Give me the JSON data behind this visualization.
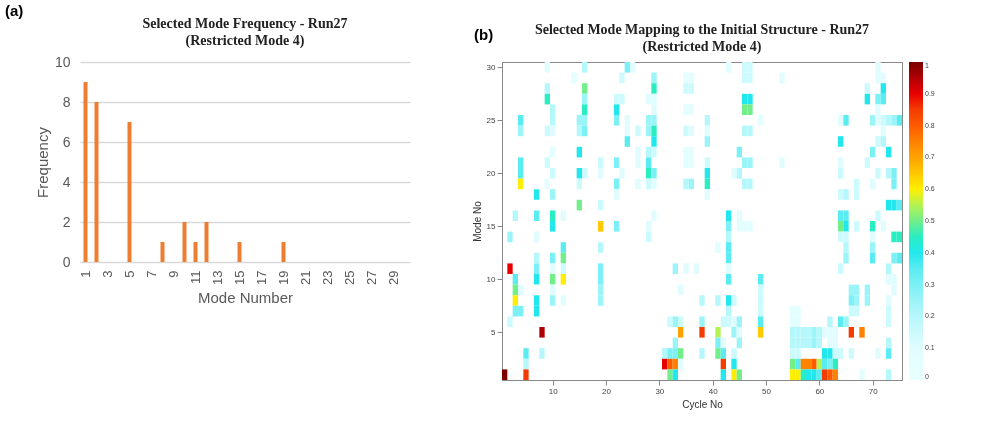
{
  "chart_data": [
    {
      "type": "bar",
      "title": "Selected Mode Frequency - Run27\n(Restricted Mode 4)",
      "xlabel": "Mode Number",
      "ylabel": "Frequency",
      "categories": [
        "1",
        null,
        "3",
        null,
        "5",
        null,
        "7",
        null,
        "9",
        null,
        "11",
        null,
        "13",
        null,
        "15",
        null,
        "17",
        null,
        "19",
        null,
        "21",
        null,
        "23",
        null,
        "25",
        null,
        "27",
        null,
        "29",
        null
      ],
      "values": [
        9,
        8,
        0,
        0,
        7,
        0,
        0,
        1,
        0,
        2,
        1,
        2,
        0,
        0,
        1,
        0,
        0,
        0,
        1,
        0,
        0,
        0,
        0,
        0,
        0,
        0,
        0,
        0,
        0,
        0
      ],
      "color": "#ed7d31",
      "ylim": [
        0,
        10
      ],
      "yticks": [
        0,
        2,
        4,
        6,
        8,
        10
      ],
      "grid": "y",
      "annotations": [
        "(a)"
      ]
    },
    {
      "type": "heatmap",
      "title": "Selected Mode Mapping to the Initial Structure - Run27\n(Restricted Mode 4)",
      "xlabel": "Cycle No",
      "ylabel": "Mode No",
      "xlim": [
        0.5,
        75.5
      ],
      "xticks": [
        10,
        20,
        30,
        40,
        50,
        60,
        70
      ],
      "ylim": [
        0.5,
        30.5
      ],
      "yticks": [
        5,
        10,
        15,
        20,
        25,
        30
      ],
      "clim": [
        0,
        1
      ],
      "cticks": [
        0,
        0.1,
        0.2,
        0.3,
        0.4,
        0.5,
        0.6,
        0.7,
        0.8,
        0.9,
        1
      ],
      "annotations": [
        "(b)"
      ],
      "cells": [
        [
          null,
          null,
          null,
          null,
          null,
          null,
          null,
          null,
          0.1,
          null,
          null,
          null,
          null,
          null,
          null,
          0.2,
          null,
          null,
          null,
          null,
          null,
          null,
          null,
          0.3,
          0.1,
          null,
          null,
          null,
          null,
          null,
          null,
          null,
          null,
          null,
          null,
          null,
          null,
          null,
          null,
          null,
          null,
          null,
          0.08,
          null,
          null,
          0.15,
          0.15,
          null,
          null,
          null,
          null,
          null,
          null,
          null,
          null,
          null,
          null,
          null,
          null,
          null,
          null,
          null,
          null,
          null,
          null,
          null,
          null,
          null,
          null,
          null,
          0.1,
          null,
          null,
          null,
          null
        ],
        [
          null,
          null,
          null,
          null,
          null,
          null,
          null,
          null,
          null,
          null,
          null,
          null,
          null,
          0.08,
          null,
          null,
          null,
          null,
          null,
          null,
          null,
          null,
          0.15,
          null,
          null,
          null,
          null,
          null,
          0.25,
          null,
          null,
          null,
          null,
          null,
          0.08,
          0.08,
          null,
          null,
          null,
          null,
          null,
          null,
          null,
          null,
          null,
          0.15,
          0.15,
          null,
          null,
          null,
          null,
          null,
          0.1,
          null,
          null,
          null,
          null,
          null,
          null,
          null,
          null,
          null,
          null,
          null,
          null,
          null,
          null,
          null,
          null,
          null,
          0.1,
          0.1,
          null,
          null,
          null
        ],
        [
          null,
          null,
          null,
          null,
          null,
          null,
          null,
          null,
          0.2,
          null,
          null,
          null,
          null,
          null,
          null,
          0.5,
          null,
          null,
          null,
          null,
          null,
          null,
          null,
          null,
          null,
          null,
          null,
          null,
          0.45,
          null,
          null,
          null,
          null,
          null,
          0.15,
          0.15,
          null,
          null,
          null,
          null,
          null,
          null,
          null,
          null,
          null,
          null,
          null,
          null,
          null,
          null,
          null,
          null,
          null,
          null,
          null,
          null,
          null,
          null,
          null,
          null,
          null,
          null,
          null,
          null,
          null,
          null,
          null,
          null,
          0.15,
          null,
          null,
          0.4,
          null,
          null,
          null
        ],
        [
          null,
          null,
          null,
          null,
          null,
          null,
          null,
          null,
          0.45,
          null,
          null,
          null,
          null,
          null,
          null,
          0.25,
          null,
          null,
          null,
          null,
          null,
          0.15,
          0.15,
          null,
          null,
          null,
          null,
          0.1,
          0.1,
          null,
          null,
          null,
          null,
          null,
          null,
          null,
          null,
          null,
          null,
          null,
          null,
          null,
          null,
          null,
          null,
          0.4,
          0.4,
          null,
          null,
          null,
          null,
          null,
          null,
          null,
          null,
          null,
          null,
          null,
          null,
          null,
          null,
          null,
          null,
          null,
          null,
          null,
          null,
          null,
          0.4,
          null,
          0.3,
          0.35,
          null,
          null,
          null
        ],
        [
          null,
          null,
          null,
          null,
          null,
          null,
          null,
          null,
          null,
          0.2,
          null,
          null,
          null,
          null,
          null,
          0.45,
          null,
          null,
          null,
          null,
          null,
          0.4,
          null,
          null,
          null,
          null,
          null,
          null,
          0.1,
          null,
          null,
          null,
          null,
          null,
          0.08,
          0.08,
          null,
          null,
          null,
          null,
          null,
          null,
          null,
          null,
          null,
          0.5,
          0.5,
          null,
          null,
          null,
          null,
          null,
          null,
          null,
          null,
          null,
          null,
          null,
          null,
          null,
          null,
          null,
          null,
          null,
          null,
          null,
          null,
          null,
          null,
          null,
          0.1,
          null,
          null,
          null,
          null
        ],
        [
          null,
          null,
          null,
          0.35,
          null,
          null,
          null,
          null,
          null,
          0.2,
          null,
          null,
          null,
          null,
          0.25,
          0.25,
          null,
          null,
          null,
          null,
          null,
          0.3,
          null,
          0.1,
          null,
          null,
          null,
          0.25,
          0.25,
          null,
          null,
          null,
          null,
          null,
          null,
          null,
          null,
          null,
          0.2,
          null,
          null,
          null,
          null,
          null,
          null,
          null,
          null,
          null,
          0.08,
          null,
          null,
          null,
          null,
          null,
          null,
          null,
          null,
          null,
          null,
          null,
          null,
          null,
          null,
          0.1,
          0.35,
          null,
          null,
          null,
          null,
          0.25,
          0.1,
          0.15,
          0.2,
          0.25,
          0.35
        ],
        [
          null,
          null,
          null,
          0.25,
          null,
          null,
          null,
          null,
          0.15,
          0.1,
          null,
          null,
          null,
          null,
          0.2,
          0.3,
          null,
          null,
          null,
          null,
          null,
          null,
          null,
          0.1,
          null,
          0.15,
          null,
          0.25,
          0.45,
          null,
          null,
          null,
          null,
          null,
          0.15,
          0.1,
          null,
          null,
          0.1,
          null,
          null,
          null,
          null,
          null,
          null,
          0.2,
          0.2,
          null,
          null,
          null,
          null,
          null,
          null,
          null,
          null,
          null,
          null,
          null,
          null,
          null,
          null,
          null,
          null,
          null,
          null,
          null,
          null,
          null,
          null,
          null,
          null,
          0.1,
          null,
          null,
          null
        ],
        [
          null,
          null,
          null,
          null,
          null,
          null,
          null,
          null,
          null,
          null,
          null,
          null,
          null,
          null,
          null,
          null,
          null,
          null,
          null,
          null,
          null,
          null,
          null,
          0.35,
          null,
          null,
          null,
          null,
          0.4,
          null,
          null,
          null,
          null,
          null,
          null,
          null,
          null,
          null,
          0.25,
          null,
          null,
          null,
          null,
          null,
          null,
          null,
          null,
          null,
          null,
          null,
          null,
          null,
          null,
          null,
          null,
          null,
          null,
          null,
          null,
          null,
          null,
          null,
          null,
          0.4,
          null,
          null,
          null,
          null,
          null,
          null,
          0.15,
          0.2,
          null,
          null,
          null
        ],
        [
          null,
          null,
          null,
          null,
          null,
          null,
          null,
          null,
          null,
          0.08,
          null,
          null,
          null,
          null,
          0.4,
          null,
          null,
          null,
          null,
          null,
          null,
          null,
          null,
          null,
          null,
          0.1,
          null,
          0.2,
          0.15,
          null,
          null,
          null,
          null,
          null,
          0.08,
          0.08,
          null,
          null,
          null,
          null,
          null,
          null,
          null,
          null,
          0.3,
          null,
          null,
          null,
          null,
          null,
          null,
          null,
          null,
          null,
          null,
          null,
          null,
          null,
          null,
          null,
          null,
          null,
          null,
          null,
          null,
          null,
          null,
          null,
          null,
          0.3,
          null,
          null,
          0.4,
          null,
          null
        ],
        [
          null,
          null,
          null,
          0.35,
          null,
          null,
          null,
          null,
          0.15,
          null,
          null,
          null,
          null,
          null,
          null,
          null,
          null,
          null,
          0.15,
          null,
          null,
          0.3,
          null,
          null,
          null,
          0.1,
          null,
          0.35,
          null,
          null,
          null,
          null,
          null,
          null,
          0.08,
          0.08,
          null,
          null,
          0.15,
          null,
          null,
          null,
          null,
          null,
          null,
          0.25,
          0.25,
          null,
          null,
          null,
          null,
          null,
          0.1,
          null,
          null,
          null,
          null,
          null,
          null,
          null,
          null,
          null,
          null,
          0.1,
          null,
          null,
          null,
          null,
          0.15,
          null,
          null,
          null,
          null,
          null,
          null
        ],
        [
          null,
          null,
          null,
          0.35,
          null,
          null,
          null,
          null,
          null,
          0.15,
          null,
          null,
          null,
          null,
          0.4,
          0.15,
          null,
          null,
          0.1,
          null,
          null,
          null,
          0.1,
          null,
          null,
          null,
          null,
          0.45,
          0.3,
          null,
          null,
          null,
          null,
          null,
          null,
          null,
          null,
          null,
          0.4,
          null,
          null,
          null,
          null,
          0.1,
          0.2,
          null,
          null,
          null,
          null,
          null,
          null,
          null,
          null,
          null,
          null,
          null,
          null,
          null,
          null,
          null,
          null,
          null,
          null,
          0.15,
          null,
          null,
          null,
          null,
          null,
          null,
          0.15,
          null,
          0.2,
          0.3,
          null
        ],
        [
          null,
          null,
          null,
          0.6,
          null,
          null,
          null,
          null,
          0.08,
          null,
          null,
          null,
          null,
          null,
          0.15,
          null,
          null,
          null,
          null,
          null,
          null,
          0.3,
          null,
          null,
          null,
          0.1,
          null,
          0.15,
          0.1,
          null,
          null,
          null,
          null,
          null,
          0.2,
          0.25,
          null,
          null,
          0.45,
          null,
          null,
          null,
          null,
          null,
          null,
          0.2,
          0.2,
          null,
          null,
          null,
          null,
          null,
          null,
          null,
          null,
          null,
          null,
          null,
          null,
          null,
          null,
          null,
          null,
          null,
          null,
          null,
          0.15,
          null,
          null,
          0.1,
          null,
          null,
          null,
          0.3,
          null
        ],
        [
          null,
          null,
          null,
          null,
          null,
          null,
          0.4,
          null,
          null,
          0.25,
          null,
          null,
          null,
          null,
          null,
          null,
          null,
          null,
          null,
          null,
          null,
          0.1,
          null,
          null,
          null,
          null,
          null,
          null,
          null,
          null,
          null,
          null,
          null,
          null,
          null,
          null,
          null,
          null,
          0.1,
          null,
          null,
          null,
          null,
          null,
          null,
          null,
          null,
          null,
          null,
          null,
          null,
          null,
          null,
          null,
          null,
          null,
          null,
          null,
          null,
          null,
          null,
          null,
          null,
          0.15,
          0.2,
          null,
          0.15,
          null,
          null,
          null,
          null,
          null,
          null,
          null,
          null
        ],
        [
          null,
          null,
          null,
          null,
          null,
          null,
          null,
          null,
          null,
          null,
          null,
          null,
          null,
          null,
          0.5,
          null,
          null,
          null,
          0.15,
          null,
          null,
          null,
          null,
          null,
          null,
          null,
          null,
          null,
          null,
          null,
          null,
          null,
          null,
          null,
          null,
          null,
          null,
          null,
          null,
          null,
          null,
          null,
          null,
          null,
          null,
          null,
          null,
          null,
          null,
          null,
          null,
          null,
          null,
          null,
          null,
          null,
          null,
          null,
          null,
          null,
          null,
          null,
          null,
          null,
          null,
          null,
          null,
          null,
          null,
          null,
          null,
          null,
          0.4,
          0.4,
          0.35
        ],
        [
          null,
          null,
          0.2,
          null,
          null,
          null,
          0.35,
          null,
          null,
          0.45,
          null,
          0.1,
          null,
          null,
          null,
          null,
          null,
          null,
          null,
          null,
          null,
          null,
          null,
          null,
          null,
          null,
          null,
          null,
          0.1,
          null,
          null,
          null,
          null,
          null,
          null,
          null,
          null,
          null,
          null,
          null,
          null,
          null,
          0.4,
          null,
          0.1,
          null,
          null,
          null,
          null,
          null,
          null,
          null,
          null,
          null,
          null,
          null,
          null,
          null,
          null,
          null,
          null,
          null,
          null,
          0.35,
          0.35,
          null,
          null,
          null,
          null,
          null,
          0.15,
          null,
          null,
          null,
          null
        ],
        [
          null,
          null,
          null,
          null,
          null,
          null,
          null,
          null,
          null,
          0.4,
          null,
          null,
          null,
          null,
          null,
          null,
          null,
          null,
          0.65,
          null,
          null,
          0.3,
          null,
          null,
          null,
          null,
          null,
          0.1,
          null,
          null,
          null,
          null,
          null,
          null,
          null,
          null,
          null,
          null,
          null,
          null,
          null,
          null,
          0.3,
          null,
          0.08,
          0.08,
          0.08,
          null,
          null,
          null,
          null,
          null,
          null,
          null,
          null,
          null,
          null,
          null,
          null,
          null,
          null,
          null,
          null,
          0.5,
          0.4,
          null,
          0.15,
          null,
          null,
          0.45,
          null,
          0.1,
          null,
          null,
          null
        ],
        [
          null,
          0.25,
          null,
          null,
          null,
          null,
          0.1,
          null,
          null,
          null,
          null,
          null,
          null,
          null,
          null,
          null,
          null,
          null,
          null,
          null,
          null,
          null,
          null,
          null,
          null,
          null,
          null,
          0.15,
          null,
          null,
          null,
          null,
          null,
          null,
          null,
          null,
          null,
          null,
          null,
          null,
          null,
          null,
          0.2,
          null,
          null,
          null,
          null,
          null,
          null,
          null,
          null,
          null,
          null,
          null,
          null,
          null,
          null,
          null,
          null,
          null,
          null,
          null,
          null,
          0.15,
          0.15,
          null,
          null,
          null,
          null,
          0.1,
          null,
          null,
          null,
          0.45,
          0.45
        ],
        [
          null,
          null,
          null,
          null,
          null,
          null,
          null,
          null,
          null,
          null,
          null,
          0.35,
          null,
          null,
          null,
          null,
          null,
          null,
          0.2,
          null,
          null,
          null,
          null,
          null,
          null,
          null,
          null,
          null,
          null,
          null,
          null,
          null,
          null,
          null,
          null,
          null,
          null,
          null,
          null,
          null,
          0.08,
          null,
          0.35,
          null,
          null,
          null,
          null,
          null,
          null,
          null,
          null,
          null,
          null,
          null,
          null,
          null,
          null,
          null,
          null,
          null,
          null,
          null,
          null,
          null,
          0.2,
          null,
          null,
          null,
          null,
          0.25,
          null,
          null,
          null,
          null,
          null
        ],
        [
          null,
          null,
          null,
          null,
          null,
          null,
          0.2,
          null,
          null,
          0.3,
          null,
          0.5,
          null,
          null,
          null,
          null,
          null,
          null,
          null,
          null,
          null,
          null,
          null,
          null,
          null,
          null,
          null,
          null,
          null,
          null,
          null,
          null,
          null,
          null,
          null,
          null,
          null,
          null,
          null,
          null,
          null,
          null,
          0.35,
          null,
          null,
          null,
          null,
          null,
          null,
          null,
          null,
          null,
          null,
          null,
          null,
          null,
          null,
          null,
          null,
          null,
          null,
          null,
          null,
          null,
          0.25,
          null,
          null,
          null,
          null,
          0.35,
          null,
          null,
          null,
          0.3,
          0.35
        ],
        [
          null,
          0.9,
          null,
          null,
          null,
          null,
          0.3,
          null,
          null,
          0.1,
          null,
          0.15,
          null,
          null,
          null,
          null,
          null,
          null,
          0.3,
          null,
          null,
          null,
          null,
          null,
          null,
          null,
          null,
          null,
          null,
          null,
          null,
          null,
          0.25,
          null,
          0.1,
          null,
          0.1,
          null,
          null,
          null,
          null,
          null,
          0.1,
          null,
          null,
          null,
          null,
          null,
          null,
          null,
          null,
          null,
          null,
          null,
          null,
          null,
          null,
          null,
          null,
          null,
          null,
          null,
          null,
          0.15,
          null,
          null,
          null,
          null,
          null,
          null,
          null,
          null,
          0.2,
          null,
          null
        ],
        [
          null,
          null,
          0.35,
          null,
          null,
          null,
          0.4,
          null,
          null,
          0.5,
          null,
          0.6,
          null,
          null,
          null,
          null,
          null,
          null,
          0.3,
          null,
          null,
          null,
          null,
          null,
          null,
          null,
          null,
          null,
          null,
          null,
          null,
          null,
          null,
          null,
          null,
          null,
          null,
          null,
          null,
          null,
          null,
          null,
          0.35,
          null,
          null,
          null,
          null,
          null,
          0.35,
          null,
          null,
          null,
          null,
          null,
          null,
          null,
          null,
          null,
          null,
          null,
          null,
          null,
          null,
          null,
          null,
          null,
          null,
          null,
          null,
          null,
          null,
          null,
          0.1,
          0.1,
          null
        ],
        [
          null,
          null,
          0.5,
          0.1,
          null,
          null,
          null,
          null,
          null,
          0.1,
          null,
          null,
          null,
          null,
          null,
          null,
          null,
          null,
          0.25,
          null,
          null,
          null,
          null,
          null,
          null,
          null,
          null,
          null,
          null,
          null,
          null,
          null,
          null,
          0.1,
          null,
          null,
          null,
          null,
          null,
          null,
          null,
          null,
          null,
          null,
          null,
          null,
          null,
          null,
          0.15,
          null,
          null,
          null,
          null,
          null,
          null,
          null,
          null,
          null,
          null,
          null,
          null,
          null,
          null,
          null,
          null,
          0.25,
          0.25,
          null,
          0.25,
          null,
          null,
          null,
          null,
          0.1,
          null
        ],
        [
          null,
          null,
          0.6,
          null,
          null,
          null,
          0.4,
          null,
          null,
          0.25,
          null,
          0.08,
          null,
          null,
          null,
          null,
          null,
          null,
          0.25,
          null,
          null,
          null,
          null,
          null,
          null,
          null,
          null,
          null,
          null,
          null,
          null,
          null,
          null,
          null,
          null,
          null,
          null,
          0.2,
          null,
          null,
          0.2,
          null,
          0.4,
          0.15,
          null,
          null,
          null,
          null,
          0.15,
          null,
          null,
          null,
          null,
          null,
          null,
          null,
          null,
          null,
          null,
          null,
          null,
          null,
          null,
          null,
          null,
          0.3,
          0.25,
          null,
          0.25,
          null,
          null,
          null,
          0.1,
          null,
          null
        ],
        [
          null,
          null,
          0.3,
          0.3,
          null,
          null,
          0.4,
          null,
          null,
          null,
          null,
          null,
          null,
          null,
          null,
          null,
          null,
          null,
          null,
          null,
          null,
          null,
          null,
          null,
          null,
          null,
          null,
          null,
          null,
          null,
          null,
          null,
          null,
          null,
          null,
          null,
          null,
          null,
          null,
          null,
          null,
          null,
          0.2,
          null,
          null,
          null,
          null,
          null,
          0.15,
          null,
          null,
          null,
          null,
          null,
          0.08,
          0.08,
          null,
          null,
          null,
          null,
          null,
          null,
          null,
          null,
          null,
          0.15,
          0.15,
          null,
          null,
          null,
          null,
          null,
          0.15,
          null,
          null
        ],
        [
          null,
          0.15,
          null,
          null,
          null,
          null,
          null,
          null,
          null,
          null,
          null,
          null,
          null,
          null,
          null,
          null,
          null,
          null,
          null,
          null,
          null,
          null,
          null,
          null,
          null,
          null,
          null,
          null,
          null,
          null,
          null,
          0.15,
          0.25,
          0.15,
          null,
          null,
          null,
          0.25,
          null,
          null,
          null,
          0.15,
          0.15,
          0.1,
          0.25,
          null,
          null,
          null,
          0.35,
          null,
          null,
          null,
          null,
          null,
          0.08,
          0.08,
          null,
          null,
          null,
          null,
          null,
          0.2,
          null,
          0.35,
          0.25,
          null,
          null,
          null,
          null,
          null,
          null,
          null,
          0.15,
          null,
          null
        ],
        [
          null,
          null,
          null,
          null,
          null,
          null,
          null,
          0.95,
          null,
          null,
          null,
          null,
          null,
          null,
          null,
          null,
          null,
          null,
          null,
          null,
          null,
          null,
          null,
          null,
          null,
          null,
          null,
          null,
          null,
          null,
          null,
          null,
          null,
          0.7,
          null,
          null,
          null,
          0.85,
          null,
          null,
          0.55,
          null,
          null,
          0.25,
          0.1,
          null,
          null,
          null,
          0.65,
          null,
          null,
          null,
          null,
          null,
          0.2,
          0.2,
          0.2,
          0.2,
          0.25,
          0.2,
          0.1,
          0.1,
          0.1,
          null,
          null,
          0.85,
          null,
          0.75,
          null,
          null,
          null,
          null,
          null,
          null,
          null
        ],
        [
          null,
          null,
          null,
          null,
          null,
          null,
          null,
          null,
          null,
          null,
          null,
          null,
          null,
          null,
          null,
          null,
          null,
          null,
          null,
          null,
          null,
          null,
          null,
          null,
          null,
          null,
          null,
          null,
          null,
          null,
          null,
          null,
          0.25,
          null,
          null,
          null,
          null,
          null,
          null,
          null,
          0.3,
          0.1,
          null,
          null,
          0.25,
          null,
          null,
          null,
          null,
          null,
          null,
          null,
          null,
          null,
          0.2,
          0.2,
          0.2,
          0.2,
          0.25,
          0.2,
          null,
          0.1,
          0.1,
          null,
          null,
          null,
          null,
          null,
          null,
          null,
          null,
          null,
          0.2,
          null,
          null
        ],
        [
          null,
          null,
          null,
          null,
          0.35,
          null,
          null,
          0.2,
          null,
          null,
          null,
          null,
          null,
          null,
          null,
          null,
          null,
          null,
          null,
          null,
          null,
          null,
          null,
          null,
          null,
          null,
          null,
          null,
          null,
          null,
          0.2,
          0.3,
          0.3,
          0.5,
          null,
          null,
          null,
          0.2,
          null,
          null,
          0.5,
          0.35,
          null,
          0.15,
          null,
          null,
          null,
          null,
          null,
          null,
          null,
          null,
          null,
          null,
          0.15,
          0.15,
          null,
          null,
          null,
          null,
          0.4,
          0.4,
          0.15,
          0.15,
          null,
          0.15,
          null,
          null,
          null,
          null,
          0.1,
          null,
          0.35,
          null,
          null
        ],
        [
          null,
          null,
          null,
          null,
          0.2,
          null,
          null,
          null,
          null,
          null,
          null,
          null,
          null,
          null,
          null,
          null,
          null,
          null,
          null,
          null,
          null,
          null,
          null,
          null,
          null,
          null,
          null,
          null,
          null,
          null,
          0.9,
          0.8,
          0.75,
          0.1,
          null,
          null,
          null,
          null,
          null,
          null,
          null,
          0.85,
          null,
          0.4,
          null,
          null,
          null,
          null,
          null,
          null,
          null,
          null,
          null,
          null,
          0.5,
          0.35,
          0.75,
          0.75,
          0.8,
          0.55,
          0.35,
          0.3,
          0.45,
          null,
          null,
          null,
          null,
          null,
          null,
          null,
          null,
          null,
          null,
          null,
          null
        ],
        [
          1,
          null,
          null,
          null,
          0.85,
          null,
          null,
          null,
          null,
          null,
          null,
          null,
          null,
          null,
          null,
          null,
          null,
          null,
          null,
          null,
          null,
          null,
          null,
          null,
          null,
          null,
          null,
          null,
          null,
          null,
          null,
          0.5,
          0.4,
          null,
          null,
          null,
          null,
          null,
          null,
          null,
          null,
          0.4,
          null,
          0.6,
          0.5,
          null,
          null,
          null,
          null,
          null,
          null,
          null,
          null,
          null,
          0.6,
          0.6,
          0.45,
          0.4,
          0.4,
          0.35,
          0.85,
          0.8,
          0.75,
          null,
          null,
          null,
          null,
          0.08,
          null,
          null,
          null,
          null,
          0.2,
          null,
          null
        ]
      ]
    }
  ]
}
